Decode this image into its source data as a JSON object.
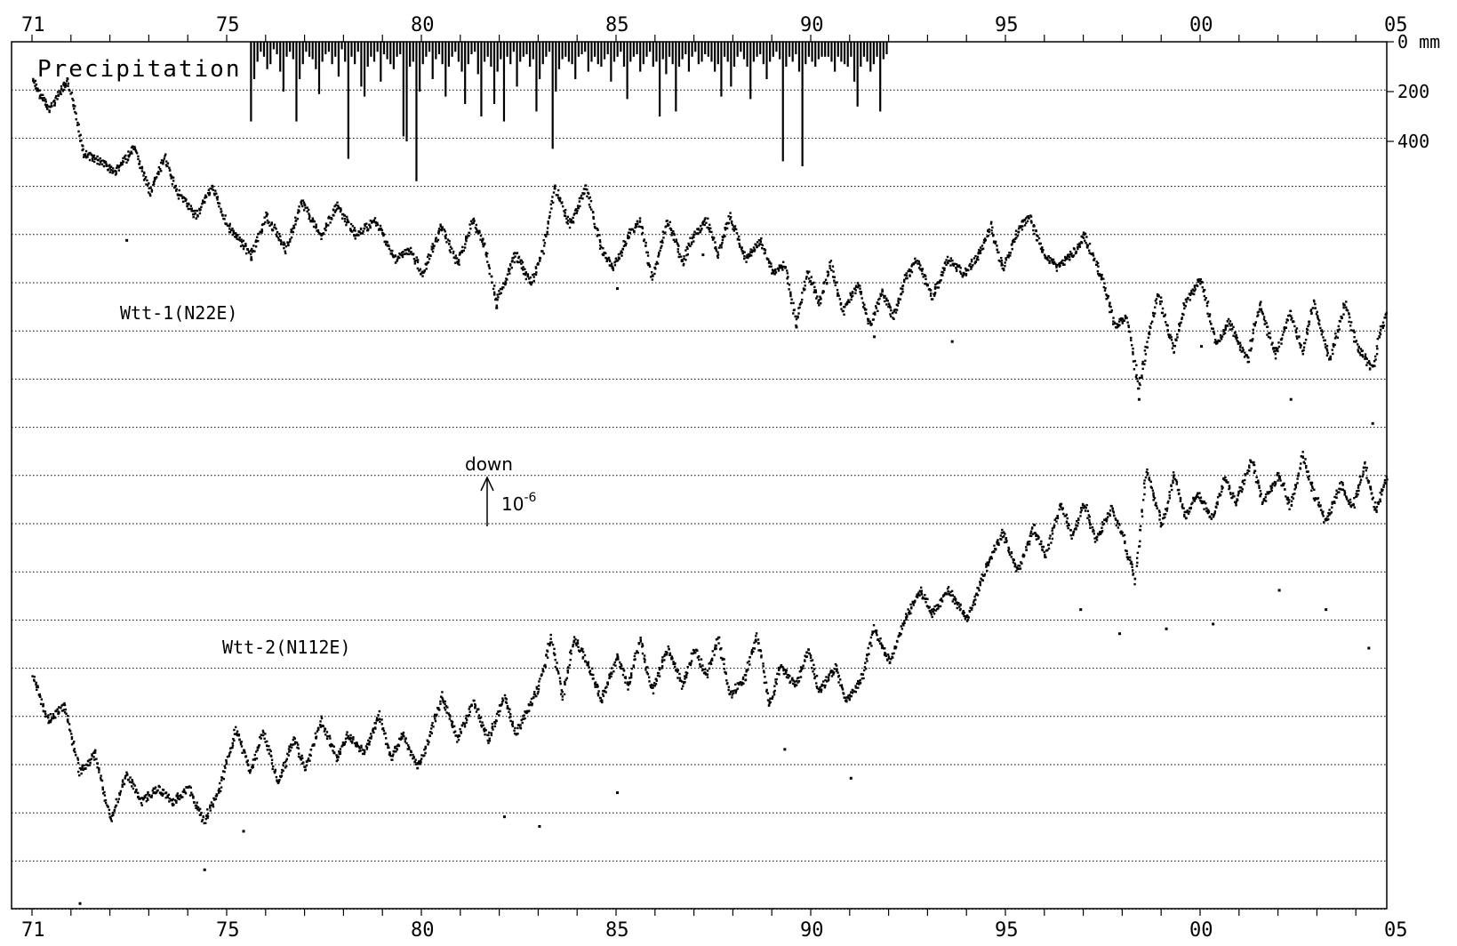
{
  "chart_data": {
    "type": "scatter",
    "x_axis": {
      "start_year": 1971,
      "end_year": 2005.5,
      "tick_labels": [
        {
          "year": 1971,
          "label": "71"
        },
        {
          "year": 1976,
          "label": "75"
        },
        {
          "year": 1981,
          "label": "80"
        },
        {
          "year": 1986,
          "label": "85"
        },
        {
          "year": 1991,
          "label": "90"
        },
        {
          "year": 1996,
          "label": "95"
        },
        {
          "year": 2001,
          "label": "00"
        },
        {
          "year": 2006,
          "label": "05"
        }
      ]
    },
    "precipitation": {
      "title": "Precipitation",
      "unit": "mm",
      "axis_labels": [
        {
          "value": 0,
          "label": "0 mm"
        },
        {
          "value": 200,
          "label": "200"
        },
        {
          "value": 400,
          "label": "400"
        }
      ],
      "ylim": [
        0,
        560
      ],
      "series": {
        "start": 1976.6,
        "step_years": 0.0833,
        "values": [
          320,
          150,
          80,
          40,
          60,
          110,
          90,
          30,
          50,
          120,
          200,
          60,
          40,
          70,
          320,
          150,
          90,
          40,
          60,
          70,
          110,
          210,
          80,
          50,
          40,
          90,
          60,
          140,
          30,
          80,
          470,
          60,
          90,
          40,
          180,
          220,
          100,
          60,
          80,
          40,
          160,
          50,
          70,
          90,
          110,
          60,
          50,
          380,
          400,
          100,
          80,
          560,
          200,
          90,
          60,
          40,
          150,
          70,
          50,
          90,
          220,
          100,
          60,
          40,
          80,
          120,
          250,
          90,
          50,
          40,
          130,
          300,
          80,
          60,
          100,
          250,
          120,
          70,
          320,
          60,
          90,
          40,
          180,
          80,
          60,
          50,
          100,
          70,
          280,
          150,
          90,
          60,
          40,
          430,
          200,
          110,
          70,
          60,
          80,
          90,
          150,
          60,
          50,
          40,
          120,
          80,
          60,
          90,
          100,
          70,
          50,
          160,
          80,
          60,
          40,
          100,
          230,
          80,
          60,
          50,
          120,
          90,
          60,
          40,
          100,
          80,
          300,
          70,
          130,
          60,
          90,
          280,
          100,
          70,
          50,
          120,
          60,
          40,
          90,
          80,
          50,
          60,
          80,
          120,
          90,
          220,
          60,
          80,
          180,
          100,
          60,
          40,
          70,
          100,
          230,
          80,
          60,
          50,
          90,
          150,
          80,
          60,
          40,
          70,
          480,
          100,
          60,
          80,
          50,
          120,
          500,
          90,
          60,
          80,
          100,
          70,
          60,
          60,
          60,
          80,
          120,
          60,
          80,
          90,
          100,
          60,
          160,
          260,
          100,
          60,
          80,
          120,
          90,
          60,
          280,
          70,
          50
        ]
      }
    },
    "scale_marker": {
      "label": "down",
      "value_text": "10",
      "exponent": "-6"
    },
    "series": [
      {
        "name": "Wtt-1(N22E)",
        "anchor_strain": [
          [
            1971.0,
            0.0
          ],
          [
            1971.4,
            -0.6
          ],
          [
            1971.9,
            0.0
          ],
          [
            1972.3,
            -1.5
          ],
          [
            1972.8,
            -1.7
          ],
          [
            1973.1,
            -1.9
          ],
          [
            1973.6,
            -1.4
          ],
          [
            1974.0,
            -2.3
          ],
          [
            1974.4,
            -1.6
          ],
          [
            1974.7,
            -2.3
          ],
          [
            1975.2,
            -2.8
          ],
          [
            1975.6,
            -2.2
          ],
          [
            1976.0,
            -3.0
          ],
          [
            1976.6,
            -3.6
          ],
          [
            1977.0,
            -2.8
          ],
          [
            1977.5,
            -3.5
          ],
          [
            1977.9,
            -2.5
          ],
          [
            1978.4,
            -3.2
          ],
          [
            1978.8,
            -2.6
          ],
          [
            1979.3,
            -3.2
          ],
          [
            1979.8,
            -2.9
          ],
          [
            1980.3,
            -3.7
          ],
          [
            1980.7,
            -3.5
          ],
          [
            1981.0,
            -4.0
          ],
          [
            1981.5,
            -3.0
          ],
          [
            1981.9,
            -3.8
          ],
          [
            1982.3,
            -2.9
          ],
          [
            1982.6,
            -3.4
          ],
          [
            1982.9,
            -4.6
          ],
          [
            1983.4,
            -3.6
          ],
          [
            1983.8,
            -4.2
          ],
          [
            1984.1,
            -3.5
          ],
          [
            1984.4,
            -2.2
          ],
          [
            1984.8,
            -3.0
          ],
          [
            1985.2,
            -2.2
          ],
          [
            1985.6,
            -3.5
          ],
          [
            1985.9,
            -3.9
          ],
          [
            1986.3,
            -3.2
          ],
          [
            1986.6,
            -2.9
          ],
          [
            1986.9,
            -4.1
          ],
          [
            1987.3,
            -2.9
          ],
          [
            1987.7,
            -3.8
          ],
          [
            1987.9,
            -3.3
          ],
          [
            1988.3,
            -2.9
          ],
          [
            1988.6,
            -3.6
          ],
          [
            1988.9,
            -2.8
          ],
          [
            1989.3,
            -3.7
          ],
          [
            1989.7,
            -3.3
          ],
          [
            1990.0,
            -4.0
          ],
          [
            1990.3,
            -3.8
          ],
          [
            1990.6,
            -5.0
          ],
          [
            1990.9,
            -4.0
          ],
          [
            1991.2,
            -4.6
          ],
          [
            1991.5,
            -3.8
          ],
          [
            1991.8,
            -4.8
          ],
          [
            1992.2,
            -4.2
          ],
          [
            1992.5,
            -5.1
          ],
          [
            1992.8,
            -4.4
          ],
          [
            1993.1,
            -4.9
          ],
          [
            1993.4,
            -4.1
          ],
          [
            1993.7,
            -3.7
          ],
          [
            1994.1,
            -4.5
          ],
          [
            1994.5,
            -3.7
          ],
          [
            1994.9,
            -4.0
          ],
          [
            1995.3,
            -3.6
          ],
          [
            1995.6,
            -3.0
          ],
          [
            1995.9,
            -3.9
          ],
          [
            1996.3,
            -3.1
          ],
          [
            1996.6,
            -2.8
          ],
          [
            1996.9,
            -3.5
          ],
          [
            1997.3,
            -3.9
          ],
          [
            1997.8,
            -3.5
          ],
          [
            1998.0,
            -3.2
          ],
          [
            1998.5,
            -4.2
          ],
          [
            1998.8,
            -5.1
          ],
          [
            1999.1,
            -4.9
          ],
          [
            1999.4,
            -6.4
          ],
          [
            1999.6,
            -5.5
          ],
          [
            1999.9,
            -4.4
          ],
          [
            2000.3,
            -5.6
          ],
          [
            2000.6,
            -4.6
          ],
          [
            2001.0,
            -4.1
          ],
          [
            2001.4,
            -5.5
          ],
          [
            2001.7,
            -5.0
          ],
          [
            2002.2,
            -5.8
          ],
          [
            2002.5,
            -4.6
          ],
          [
            2002.9,
            -5.7
          ],
          [
            2003.3,
            -4.8
          ],
          [
            2003.6,
            -5.6
          ],
          [
            2003.9,
            -4.6
          ],
          [
            2004.3,
            -5.8
          ],
          [
            2004.7,
            -4.6
          ],
          [
            2005.0,
            -5.5
          ],
          [
            2005.4,
            -6.0
          ],
          [
            2005.6,
            -5.2
          ],
          [
            2005.9,
            -4.6
          ],
          [
            2006.0,
            -6.5
          ],
          [
            2006.4,
            -5.3
          ],
          [
            2006.6,
            -3.7
          ]
        ],
        "outliers": [
          [
            1973.4,
            -3.3
          ],
          [
            1976.6,
            -3.7
          ],
          [
            1982.9,
            -4.7
          ],
          [
            1986.0,
            -4.3
          ],
          [
            1988.2,
            -3.6
          ],
          [
            1990.6,
            -5.1
          ],
          [
            1992.6,
            -5.3
          ],
          [
            1994.6,
            -5.4
          ],
          [
            1999.4,
            -6.6
          ],
          [
            2001.0,
            -5.5
          ],
          [
            2003.3,
            -6.6
          ],
          [
            2005.4,
            -7.1
          ]
        ]
      },
      {
        "name": "Wtt-2(N112E)",
        "anchor_strain": [
          [
            1971.0,
            0.0
          ],
          [
            1971.4,
            -0.9
          ],
          [
            1971.8,
            -0.6
          ],
          [
            1972.2,
            -2.0
          ],
          [
            1972.6,
            -1.6
          ],
          [
            1973.0,
            -3.0
          ],
          [
            1973.4,
            -2.0
          ],
          [
            1973.8,
            -2.6
          ],
          [
            1974.2,
            -2.3
          ],
          [
            1974.6,
            -2.6
          ],
          [
            1975.0,
            -2.3
          ],
          [
            1975.4,
            -3.0
          ],
          [
            1975.8,
            -2.3
          ],
          [
            1976.2,
            -1.1
          ],
          [
            1976.6,
            -2.0
          ],
          [
            1976.9,
            -1.1
          ],
          [
            1977.3,
            -2.2
          ],
          [
            1977.7,
            -1.3
          ],
          [
            1978.0,
            -1.9
          ],
          [
            1978.4,
            -0.9
          ],
          [
            1978.8,
            -1.7
          ],
          [
            1979.1,
            -1.2
          ],
          [
            1979.5,
            -1.6
          ],
          [
            1979.9,
            -0.8
          ],
          [
            1980.2,
            -1.7
          ],
          [
            1980.5,
            -1.2
          ],
          [
            1980.9,
            -1.9
          ],
          [
            1981.2,
            -1.2
          ],
          [
            1981.5,
            -0.4
          ],
          [
            1981.9,
            -1.3
          ],
          [
            1982.3,
            -0.5
          ],
          [
            1982.7,
            -1.3
          ],
          [
            1983.1,
            -0.4
          ],
          [
            1983.4,
            -1.2
          ],
          [
            1983.7,
            -0.7
          ],
          [
            1984.0,
            -0.2
          ],
          [
            1984.3,
            0.8
          ],
          [
            1984.6,
            -0.4
          ],
          [
            1984.9,
            0.8
          ],
          [
            1985.3,
            0.2
          ],
          [
            1985.6,
            -0.5
          ],
          [
            1986.0,
            0.4
          ],
          [
            1986.3,
            -0.2
          ],
          [
            1986.6,
            0.8
          ],
          [
            1986.9,
            -0.3
          ],
          [
            1987.3,
            0.6
          ],
          [
            1987.7,
            -0.2
          ],
          [
            1988.0,
            0.6
          ],
          [
            1988.3,
            0.0
          ],
          [
            1988.6,
            0.8
          ],
          [
            1988.9,
            -0.4
          ],
          [
            1989.3,
            0.0
          ],
          [
            1989.6,
            0.9
          ],
          [
            1989.9,
            -0.6
          ],
          [
            1990.2,
            0.2
          ],
          [
            1990.6,
            -0.2
          ],
          [
            1990.9,
            0.6
          ],
          [
            1991.2,
            -0.3
          ],
          [
            1991.6,
            0.2
          ],
          [
            1991.9,
            -0.5
          ],
          [
            1992.3,
            0.0
          ],
          [
            1992.6,
            1.0
          ],
          [
            1993.0,
            0.3
          ],
          [
            1993.4,
            1.2
          ],
          [
            1993.8,
            1.8
          ],
          [
            1994.1,
            1.3
          ],
          [
            1994.5,
            1.8
          ],
          [
            1995.0,
            1.2
          ],
          [
            1995.5,
            2.3
          ],
          [
            1995.9,
            3.0
          ],
          [
            1996.3,
            2.2
          ],
          [
            1996.7,
            3.1
          ],
          [
            1997.0,
            2.5
          ],
          [
            1997.4,
            3.6
          ],
          [
            1997.7,
            2.9
          ],
          [
            1998.0,
            3.6
          ],
          [
            1998.3,
            2.8
          ],
          [
            1998.7,
            3.5
          ],
          [
            1999.0,
            2.9
          ],
          [
            1999.3,
            2.0
          ],
          [
            1999.6,
            4.3
          ],
          [
            2000.0,
            3.1
          ],
          [
            2000.3,
            4.2
          ],
          [
            2000.6,
            3.3
          ],
          [
            2000.9,
            3.8
          ],
          [
            2001.3,
            3.3
          ],
          [
            2001.6,
            4.1
          ],
          [
            2001.9,
            3.6
          ],
          [
            2002.3,
            4.5
          ],
          [
            2002.6,
            3.6
          ],
          [
            2003.0,
            4.2
          ],
          [
            2003.3,
            3.5
          ],
          [
            2003.6,
            4.6
          ],
          [
            2003.9,
            3.8
          ],
          [
            2004.2,
            3.2
          ],
          [
            2004.6,
            4.0
          ],
          [
            2004.9,
            3.5
          ],
          [
            2005.2,
            4.4
          ],
          [
            2005.5,
            3.4
          ],
          [
            2005.8,
            4.3
          ],
          [
            2006.2,
            3.7
          ],
          [
            2006.5,
            4.3
          ],
          [
            2006.6,
            5.3
          ]
        ],
        "outliers": [
          [
            1972.2,
            -4.7
          ],
          [
            1975.4,
            -4.0
          ],
          [
            1976.4,
            -3.2
          ],
          [
            1983.1,
            -2.9
          ],
          [
            1984.0,
            -3.1
          ],
          [
            1986.0,
            -2.4
          ],
          [
            1990.3,
            -1.5
          ],
          [
            1992.0,
            -2.1
          ],
          [
            1997.9,
            1.4
          ],
          [
            1998.9,
            0.9
          ],
          [
            2000.1,
            1.0
          ],
          [
            2001.3,
            1.1
          ],
          [
            2003.0,
            1.8
          ],
          [
            2004.2,
            1.4
          ],
          [
            2005.3,
            0.6
          ]
        ]
      }
    ]
  }
}
